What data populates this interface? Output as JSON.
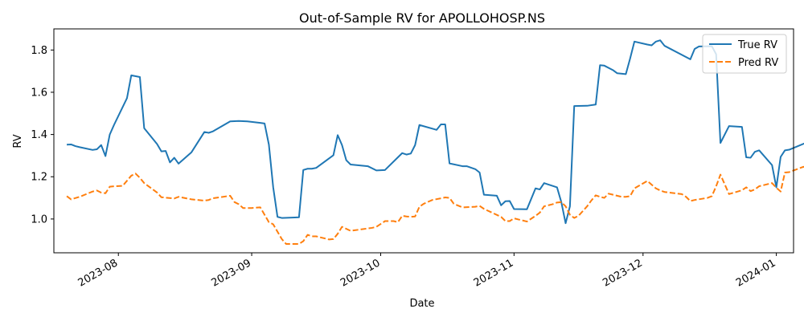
{
  "chart_data": {
    "type": "line",
    "title": "Out-of-Sample RV for APOLLOHOSP.NS",
    "xlabel": "Date",
    "ylabel": "RV",
    "xlim": [
      "2023-07-17",
      "2024-01-05"
    ],
    "ylim": [
      0.84,
      1.9
    ],
    "x_ticks": [
      "2023-08-01",
      "2023-09-01",
      "2023-10-01",
      "2023-11-01",
      "2023-12-01",
      "2024-01-01"
    ],
    "x_tick_labels": [
      "2023-08",
      "2023-09",
      "2023-10",
      "2023-11",
      "2023-12",
      "2024-01"
    ],
    "y_ticks": [
      1.0,
      1.2,
      1.4,
      1.6,
      1.8
    ],
    "y_tick_labels": [
      "1.0",
      "1.2",
      "1.4",
      "1.6",
      "1.8"
    ],
    "grid": false,
    "legend_position": "top-right",
    "series": [
      {
        "name": "True RV",
        "color": "#1f77b4",
        "style": "solid",
        "points": [
          [
            "2023-07-20",
            1.352
          ],
          [
            "2023-07-21",
            1.353
          ],
          [
            "2023-07-22",
            1.345
          ],
          [
            "2023-07-23",
            1.34
          ],
          [
            "2023-07-26",
            1.327
          ],
          [
            "2023-07-27",
            1.33
          ],
          [
            "2023-07-28",
            1.35
          ],
          [
            "2023-07-29",
            1.298
          ],
          [
            "2023-07-30",
            1.4
          ],
          [
            "2023-07-31",
            1.446
          ],
          [
            "2023-08-03",
            1.572
          ],
          [
            "2023-08-04",
            1.68
          ],
          [
            "2023-08-06",
            1.672
          ],
          [
            "2023-08-07",
            1.43
          ],
          [
            "2023-08-10",
            1.355
          ],
          [
            "2023-08-11",
            1.32
          ],
          [
            "2023-08-12",
            1.322
          ],
          [
            "2023-08-13",
            1.268
          ],
          [
            "2023-08-14",
            1.29
          ],
          [
            "2023-08-15",
            1.262
          ],
          [
            "2023-08-18",
            1.316
          ],
          [
            "2023-08-21",
            1.412
          ],
          [
            "2023-08-22",
            1.408
          ],
          [
            "2023-08-23",
            1.415
          ],
          [
            "2023-08-27",
            1.462
          ],
          [
            "2023-08-29",
            1.464
          ],
          [
            "2023-08-31",
            1.462
          ],
          [
            "2023-09-03",
            1.455
          ],
          [
            "2023-09-04",
            1.452
          ],
          [
            "2023-09-05",
            1.352
          ],
          [
            "2023-09-06",
            1.15
          ],
          [
            "2023-09-07",
            1.01
          ],
          [
            "2023-09-08",
            1.005
          ],
          [
            "2023-09-11",
            1.007
          ],
          [
            "2023-09-12",
            1.008
          ],
          [
            "2023-09-13",
            1.232
          ],
          [
            "2023-09-14",
            1.238
          ],
          [
            "2023-09-15",
            1.238
          ],
          [
            "2023-09-16",
            1.242
          ],
          [
            "2023-09-20",
            1.302
          ],
          [
            "2023-09-21",
            1.397
          ],
          [
            "2023-09-22",
            1.35
          ],
          [
            "2023-09-23",
            1.278
          ],
          [
            "2023-09-24",
            1.258
          ],
          [
            "2023-09-28",
            1.25
          ],
          [
            "2023-09-30",
            1.23
          ],
          [
            "2023-10-02",
            1.232
          ],
          [
            "2023-10-06",
            1.312
          ],
          [
            "2023-10-07",
            1.305
          ],
          [
            "2023-10-08",
            1.31
          ],
          [
            "2023-10-09",
            1.35
          ],
          [
            "2023-10-10",
            1.445
          ],
          [
            "2023-10-14",
            1.422
          ],
          [
            "2023-10-15",
            1.448
          ],
          [
            "2023-10-16",
            1.448
          ],
          [
            "2023-10-17",
            1.263
          ],
          [
            "2023-10-20",
            1.25
          ],
          [
            "2023-10-21",
            1.25
          ],
          [
            "2023-10-23",
            1.236
          ],
          [
            "2023-10-24",
            1.22
          ],
          [
            "2023-10-25",
            1.115
          ],
          [
            "2023-10-28",
            1.11
          ],
          [
            "2023-10-29",
            1.065
          ],
          [
            "2023-10-30",
            1.084
          ],
          [
            "2023-10-31",
            1.085
          ],
          [
            "2023-11-01",
            1.047
          ],
          [
            "2023-11-04",
            1.046
          ],
          [
            "2023-11-06",
            1.145
          ],
          [
            "2023-11-07",
            1.14
          ],
          [
            "2023-11-08",
            1.17
          ],
          [
            "2023-11-11",
            1.15
          ],
          [
            "2023-11-12",
            1.08
          ],
          [
            "2023-11-13",
            0.98
          ],
          [
            "2023-11-14",
            1.06
          ],
          [
            "2023-11-15",
            1.535
          ],
          [
            "2023-11-18",
            1.536
          ],
          [
            "2023-11-20",
            1.542
          ],
          [
            "2023-11-21",
            1.728
          ],
          [
            "2023-11-22",
            1.726
          ],
          [
            "2023-11-24",
            1.705
          ],
          [
            "2023-11-25",
            1.69
          ],
          [
            "2023-11-27",
            1.686
          ],
          [
            "2023-11-28",
            1.76
          ],
          [
            "2023-11-29",
            1.84
          ],
          [
            "2023-12-02",
            1.826
          ],
          [
            "2023-12-03",
            1.822
          ],
          [
            "2023-12-04",
            1.84
          ],
          [
            "2023-12-05",
            1.846
          ],
          [
            "2023-12-06",
            1.82
          ],
          [
            "2023-12-12",
            1.756
          ],
          [
            "2023-12-13",
            1.805
          ],
          [
            "2023-12-14",
            1.817
          ],
          [
            "2023-12-17",
            1.818
          ],
          [
            "2023-12-18",
            1.78
          ],
          [
            "2023-12-19",
            1.36
          ],
          [
            "2023-12-21",
            1.44
          ],
          [
            "2023-12-24",
            1.436
          ],
          [
            "2023-12-25",
            1.292
          ],
          [
            "2023-12-26",
            1.29
          ],
          [
            "2023-12-27",
            1.318
          ],
          [
            "2023-12-28",
            1.325
          ],
          [
            "2023-12-31",
            1.255
          ],
          [
            "2024-01-01",
            1.15
          ],
          [
            "2024-01-02",
            1.294
          ],
          [
            "2024-01-03",
            1.325
          ],
          [
            "2024-01-04",
            1.328
          ],
          [
            "2024-01-09",
            1.37
          ],
          [
            "2024-01-10",
            1.335
          ],
          [
            "2024-01-11",
            1.356
          ],
          [
            "2024-01-12",
            1.354
          ]
        ]
      },
      {
        "name": "Pred RV",
        "color": "#ff7f0e",
        "style": "dashed",
        "points": [
          [
            "2023-07-20",
            1.108
          ],
          [
            "2023-07-21",
            1.093
          ],
          [
            "2023-07-23",
            1.105
          ],
          [
            "2023-07-26",
            1.13
          ],
          [
            "2023-07-27",
            1.135
          ],
          [
            "2023-07-28",
            1.125
          ],
          [
            "2023-07-29",
            1.122
          ],
          [
            "2023-07-30",
            1.153
          ],
          [
            "2023-07-31",
            1.155
          ],
          [
            "2023-08-02",
            1.157
          ],
          [
            "2023-08-04",
            1.205
          ],
          [
            "2023-08-05",
            1.215
          ],
          [
            "2023-08-06",
            1.195
          ],
          [
            "2023-08-07",
            1.17
          ],
          [
            "2023-08-10",
            1.125
          ],
          [
            "2023-08-11",
            1.103
          ],
          [
            "2023-08-14",
            1.097
          ],
          [
            "2023-08-15",
            1.105
          ],
          [
            "2023-08-18",
            1.093
          ],
          [
            "2023-08-21",
            1.087
          ],
          [
            "2023-08-22",
            1.09
          ],
          [
            "2023-08-23",
            1.098
          ],
          [
            "2023-08-27",
            1.11
          ],
          [
            "2023-08-28",
            1.08
          ],
          [
            "2023-08-29",
            1.07
          ],
          [
            "2023-08-30",
            1.052
          ],
          [
            "2023-09-01",
            1.052
          ],
          [
            "2023-09-03",
            1.055
          ],
          [
            "2023-09-05",
            0.985
          ],
          [
            "2023-09-06",
            0.975
          ],
          [
            "2023-09-08",
            0.905
          ],
          [
            "2023-09-09",
            0.882
          ],
          [
            "2023-09-12",
            0.882
          ],
          [
            "2023-09-13",
            0.895
          ],
          [
            "2023-09-14",
            0.925
          ],
          [
            "2023-09-15",
            0.918
          ],
          [
            "2023-09-16",
            0.918
          ],
          [
            "2023-09-19",
            0.903
          ],
          [
            "2023-09-20",
            0.905
          ],
          [
            "2023-09-21",
            0.93
          ],
          [
            "2023-09-22",
            0.963
          ],
          [
            "2023-09-24",
            0.944
          ],
          [
            "2023-09-29",
            0.958
          ],
          [
            "2023-09-30",
            0.963
          ],
          [
            "2023-10-02",
            0.99
          ],
          [
            "2023-10-04",
            0.99
          ],
          [
            "2023-10-05",
            0.985
          ],
          [
            "2023-10-06",
            1.015
          ],
          [
            "2023-10-07",
            1.012
          ],
          [
            "2023-10-08",
            1.01
          ],
          [
            "2023-10-09",
            1.012
          ],
          [
            "2023-10-10",
            1.058
          ],
          [
            "2023-10-11",
            1.072
          ],
          [
            "2023-10-13",
            1.09
          ],
          [
            "2023-10-16",
            1.102
          ],
          [
            "2023-10-17",
            1.1
          ],
          [
            "2023-10-18",
            1.072
          ],
          [
            "2023-10-20",
            1.055
          ],
          [
            "2023-10-23",
            1.058
          ],
          [
            "2023-10-24",
            1.062
          ],
          [
            "2023-10-25",
            1.048
          ],
          [
            "2023-10-29",
            1.01
          ],
          [
            "2023-10-30",
            0.99
          ],
          [
            "2023-10-31",
            0.99
          ],
          [
            "2023-11-01",
            1.003
          ],
          [
            "2023-11-02",
            0.998
          ],
          [
            "2023-11-04",
            0.988
          ],
          [
            "2023-11-06",
            1.015
          ],
          [
            "2023-11-07",
            1.03
          ],
          [
            "2023-11-08",
            1.06
          ],
          [
            "2023-11-10",
            1.07
          ],
          [
            "2023-11-11",
            1.078
          ],
          [
            "2023-11-12",
            1.08
          ],
          [
            "2023-11-13",
            1.06
          ],
          [
            "2023-11-14",
            1.02
          ],
          [
            "2023-11-15",
            1.005
          ],
          [
            "2023-11-16",
            1.015
          ],
          [
            "2023-11-18",
            1.06
          ],
          [
            "2023-11-19",
            1.088
          ],
          [
            "2023-11-20",
            1.112
          ],
          [
            "2023-11-21",
            1.105
          ],
          [
            "2023-11-22",
            1.1
          ],
          [
            "2023-11-23",
            1.12
          ],
          [
            "2023-11-24",
            1.115
          ],
          [
            "2023-11-26",
            1.105
          ],
          [
            "2023-11-27",
            1.105
          ],
          [
            "2023-11-28",
            1.108
          ],
          [
            "2023-11-29",
            1.145
          ],
          [
            "2023-12-02",
            1.18
          ],
          [
            "2023-12-04",
            1.145
          ],
          [
            "2023-12-05",
            1.135
          ],
          [
            "2023-12-06",
            1.128
          ],
          [
            "2023-12-10",
            1.118
          ],
          [
            "2023-12-11",
            1.105
          ],
          [
            "2023-12-12",
            1.085
          ],
          [
            "2023-12-13",
            1.09
          ],
          [
            "2023-12-16",
            1.1
          ],
          [
            "2023-12-17",
            1.108
          ],
          [
            "2023-12-18",
            1.155
          ],
          [
            "2023-12-19",
            1.21
          ],
          [
            "2023-12-21",
            1.118
          ],
          [
            "2023-12-23",
            1.13
          ],
          [
            "2023-12-24",
            1.136
          ],
          [
            "2023-12-25",
            1.15
          ],
          [
            "2023-12-26",
            1.132
          ],
          [
            "2023-12-27",
            1.14
          ],
          [
            "2023-12-28",
            1.155
          ],
          [
            "2023-12-30",
            1.165
          ],
          [
            "2023-12-31",
            1.17
          ],
          [
            "2024-01-01",
            1.148
          ],
          [
            "2024-01-02",
            1.13
          ],
          [
            "2024-01-03",
            1.22
          ],
          [
            "2024-01-04",
            1.222
          ],
          [
            "2024-01-07",
            1.245
          ],
          [
            "2024-01-08",
            1.25
          ],
          [
            "2024-01-09",
            1.248
          ],
          [
            "2024-01-10",
            1.258
          ],
          [
            "2024-01-12",
            1.262
          ]
        ]
      }
    ]
  }
}
